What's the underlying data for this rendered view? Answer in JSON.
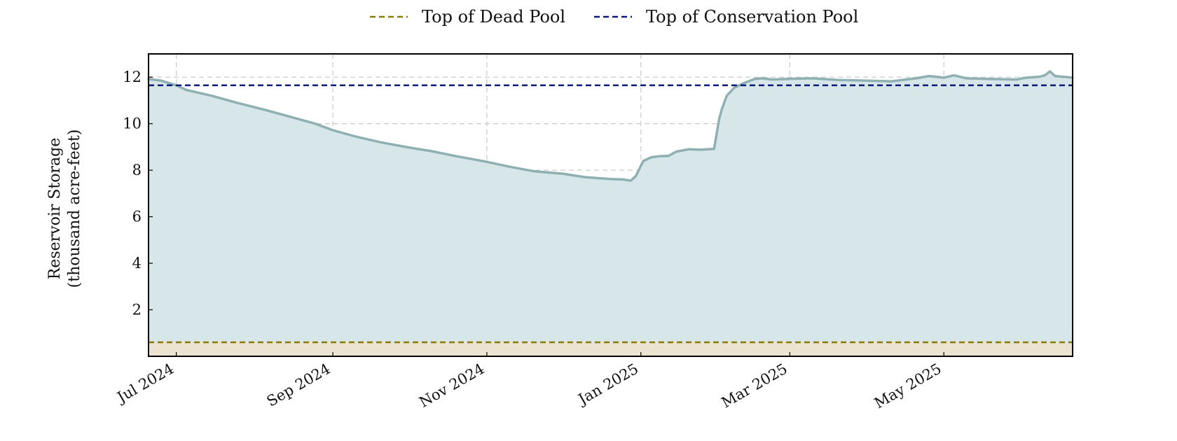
{
  "chart_data": {
    "type": "area",
    "ylabel_line1": "Reservoir Storage",
    "ylabel_line2": "(thousand acre-feet)",
    "xlim": [
      "2024-06-20",
      "2025-06-21"
    ],
    "ylim": [
      0,
      13
    ],
    "yticks": [
      2,
      4,
      6,
      8,
      10,
      12
    ],
    "xticks": [
      {
        "date": "2024-07-01",
        "label": "Jul 2024"
      },
      {
        "date": "2024-09-01",
        "label": "Sep 2024"
      },
      {
        "date": "2024-11-01",
        "label": "Nov 2024"
      },
      {
        "date": "2025-01-01",
        "label": "Jan 2025"
      },
      {
        "date": "2025-03-01",
        "label": "Mar 2025"
      },
      {
        "date": "2025-05-01",
        "label": "May 2025"
      }
    ],
    "grid": true,
    "legend_position": "top-center",
    "legend": [
      {
        "label": "Top of Dead Pool",
        "color": "#8a7a00",
        "style": "dashed"
      },
      {
        "label": "Top of Conservation Pool",
        "color": "#0b1a7a",
        "style": "dashed"
      }
    ],
    "reference_lines": {
      "dead_pool": 0.6,
      "conservation_pool": 11.65
    },
    "colors": {
      "storage_line": "#8fb0b3",
      "storage_fill": "#d7e6e8",
      "dead_pool_fill": "#ece3d1",
      "grid": "#cccccc"
    },
    "series": [
      {
        "x": [
          "2024-06-20",
          "2024-06-25",
          "2024-07-01",
          "2024-07-05",
          "2024-07-15",
          "2024-07-25",
          "2024-08-05",
          "2024-08-15",
          "2024-08-25",
          "2024-09-01",
          "2024-09-10",
          "2024-09-20",
          "2024-10-01",
          "2024-10-10",
          "2024-10-20",
          "2024-11-01",
          "2024-11-10",
          "2024-11-20",
          "2024-12-01",
          "2024-12-10",
          "2024-12-20",
          "2024-12-25",
          "2024-12-28",
          "2024-12-30",
          "2025-01-02",
          "2025-01-05",
          "2025-01-08",
          "2025-01-12",
          "2025-01-15",
          "2025-01-20",
          "2025-01-25",
          "2025-01-30",
          "2025-02-01",
          "2025-02-02",
          "2025-02-04",
          "2025-02-07",
          "2025-02-11",
          "2025-02-15",
          "2025-02-18",
          "2025-02-22",
          "2025-03-01",
          "2025-03-10",
          "2025-03-20",
          "2025-04-01",
          "2025-04-10",
          "2025-04-20",
          "2025-04-25",
          "2025-05-01",
          "2025-05-05",
          "2025-05-10",
          "2025-05-20",
          "2025-05-30",
          "2025-06-01",
          "2025-06-03",
          "2025-06-08",
          "2025-06-10",
          "2025-06-12",
          "2025-06-14",
          "2025-06-21"
        ],
        "values": [
          11.92,
          11.85,
          11.65,
          11.45,
          11.2,
          10.9,
          10.6,
          10.3,
          10.0,
          9.72,
          9.45,
          9.2,
          8.98,
          8.82,
          8.6,
          8.36,
          8.15,
          7.95,
          7.85,
          7.7,
          7.62,
          7.6,
          7.55,
          7.75,
          8.4,
          8.55,
          8.6,
          8.62,
          8.8,
          8.9,
          8.88,
          8.92,
          10.2,
          10.6,
          11.2,
          11.55,
          11.75,
          11.92,
          11.95,
          11.9,
          11.93,
          11.95,
          11.88,
          11.85,
          11.82,
          11.95,
          12.05,
          11.98,
          12.08,
          11.95,
          11.92,
          11.9,
          11.95,
          11.98,
          12.02,
          12.08,
          12.25,
          12.05,
          11.98
        ]
      }
    ]
  }
}
